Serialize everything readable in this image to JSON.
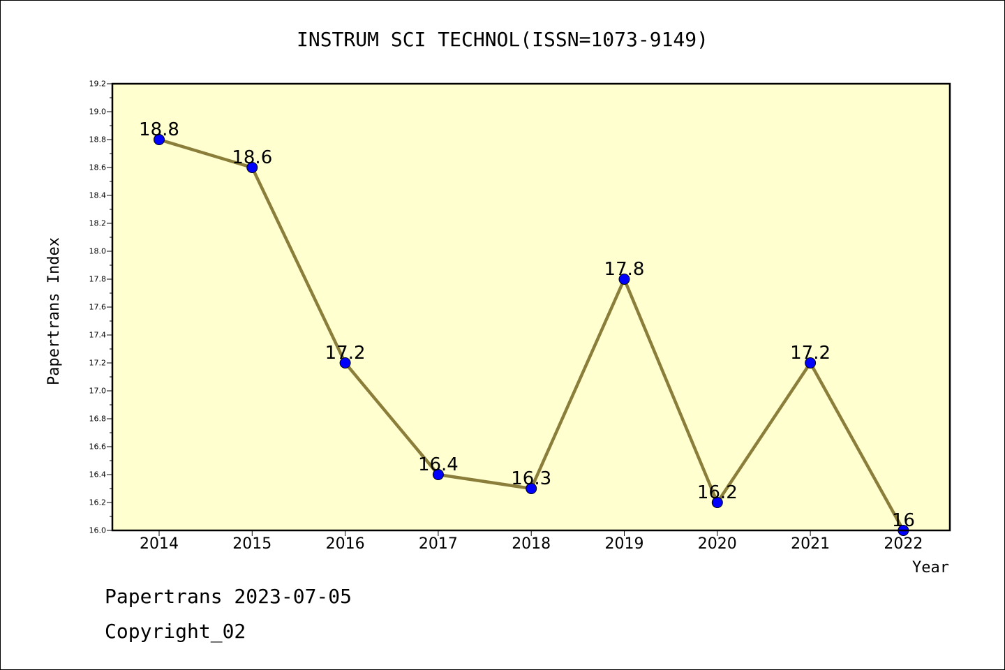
{
  "chart_data": {
    "type": "line",
    "title": "INSTRUM SCI TECHNOL(ISSN=1073-9149)",
    "xlabel": "Year",
    "ylabel": "Papertrans Index",
    "categories": [
      "2014",
      "2015",
      "2016",
      "2017",
      "2018",
      "2019",
      "2020",
      "2021",
      "2022"
    ],
    "series": [
      {
        "values": [
          18.8,
          18.6,
          17.2,
          16.4,
          16.3,
          17.8,
          16.2,
          17.2,
          16.0
        ],
        "labels": [
          "18.8",
          "18.6",
          "17.2",
          "16.4",
          "16.3",
          "17.8",
          "16.2",
          "17.2",
          "16"
        ]
      }
    ],
    "ylim": [
      16.0,
      19.2
    ],
    "yticks": [
      "16.0",
      "16.2",
      "16.4",
      "16.6",
      "16.8",
      "17.0",
      "17.2",
      "17.4",
      "17.6",
      "17.8",
      "18.0",
      "18.2",
      "18.4",
      "18.6",
      "18.8",
      "19.0",
      "19.2"
    ],
    "grid": false,
    "legend": "none",
    "colors": {
      "plot_background": "#ffffd0",
      "line": "#8b7d3a",
      "marker": "#0000ff",
      "axis": "#000000"
    }
  },
  "footer": {
    "line1": "Papertrans 2023-07-05",
    "line2": "Copyright_02"
  }
}
